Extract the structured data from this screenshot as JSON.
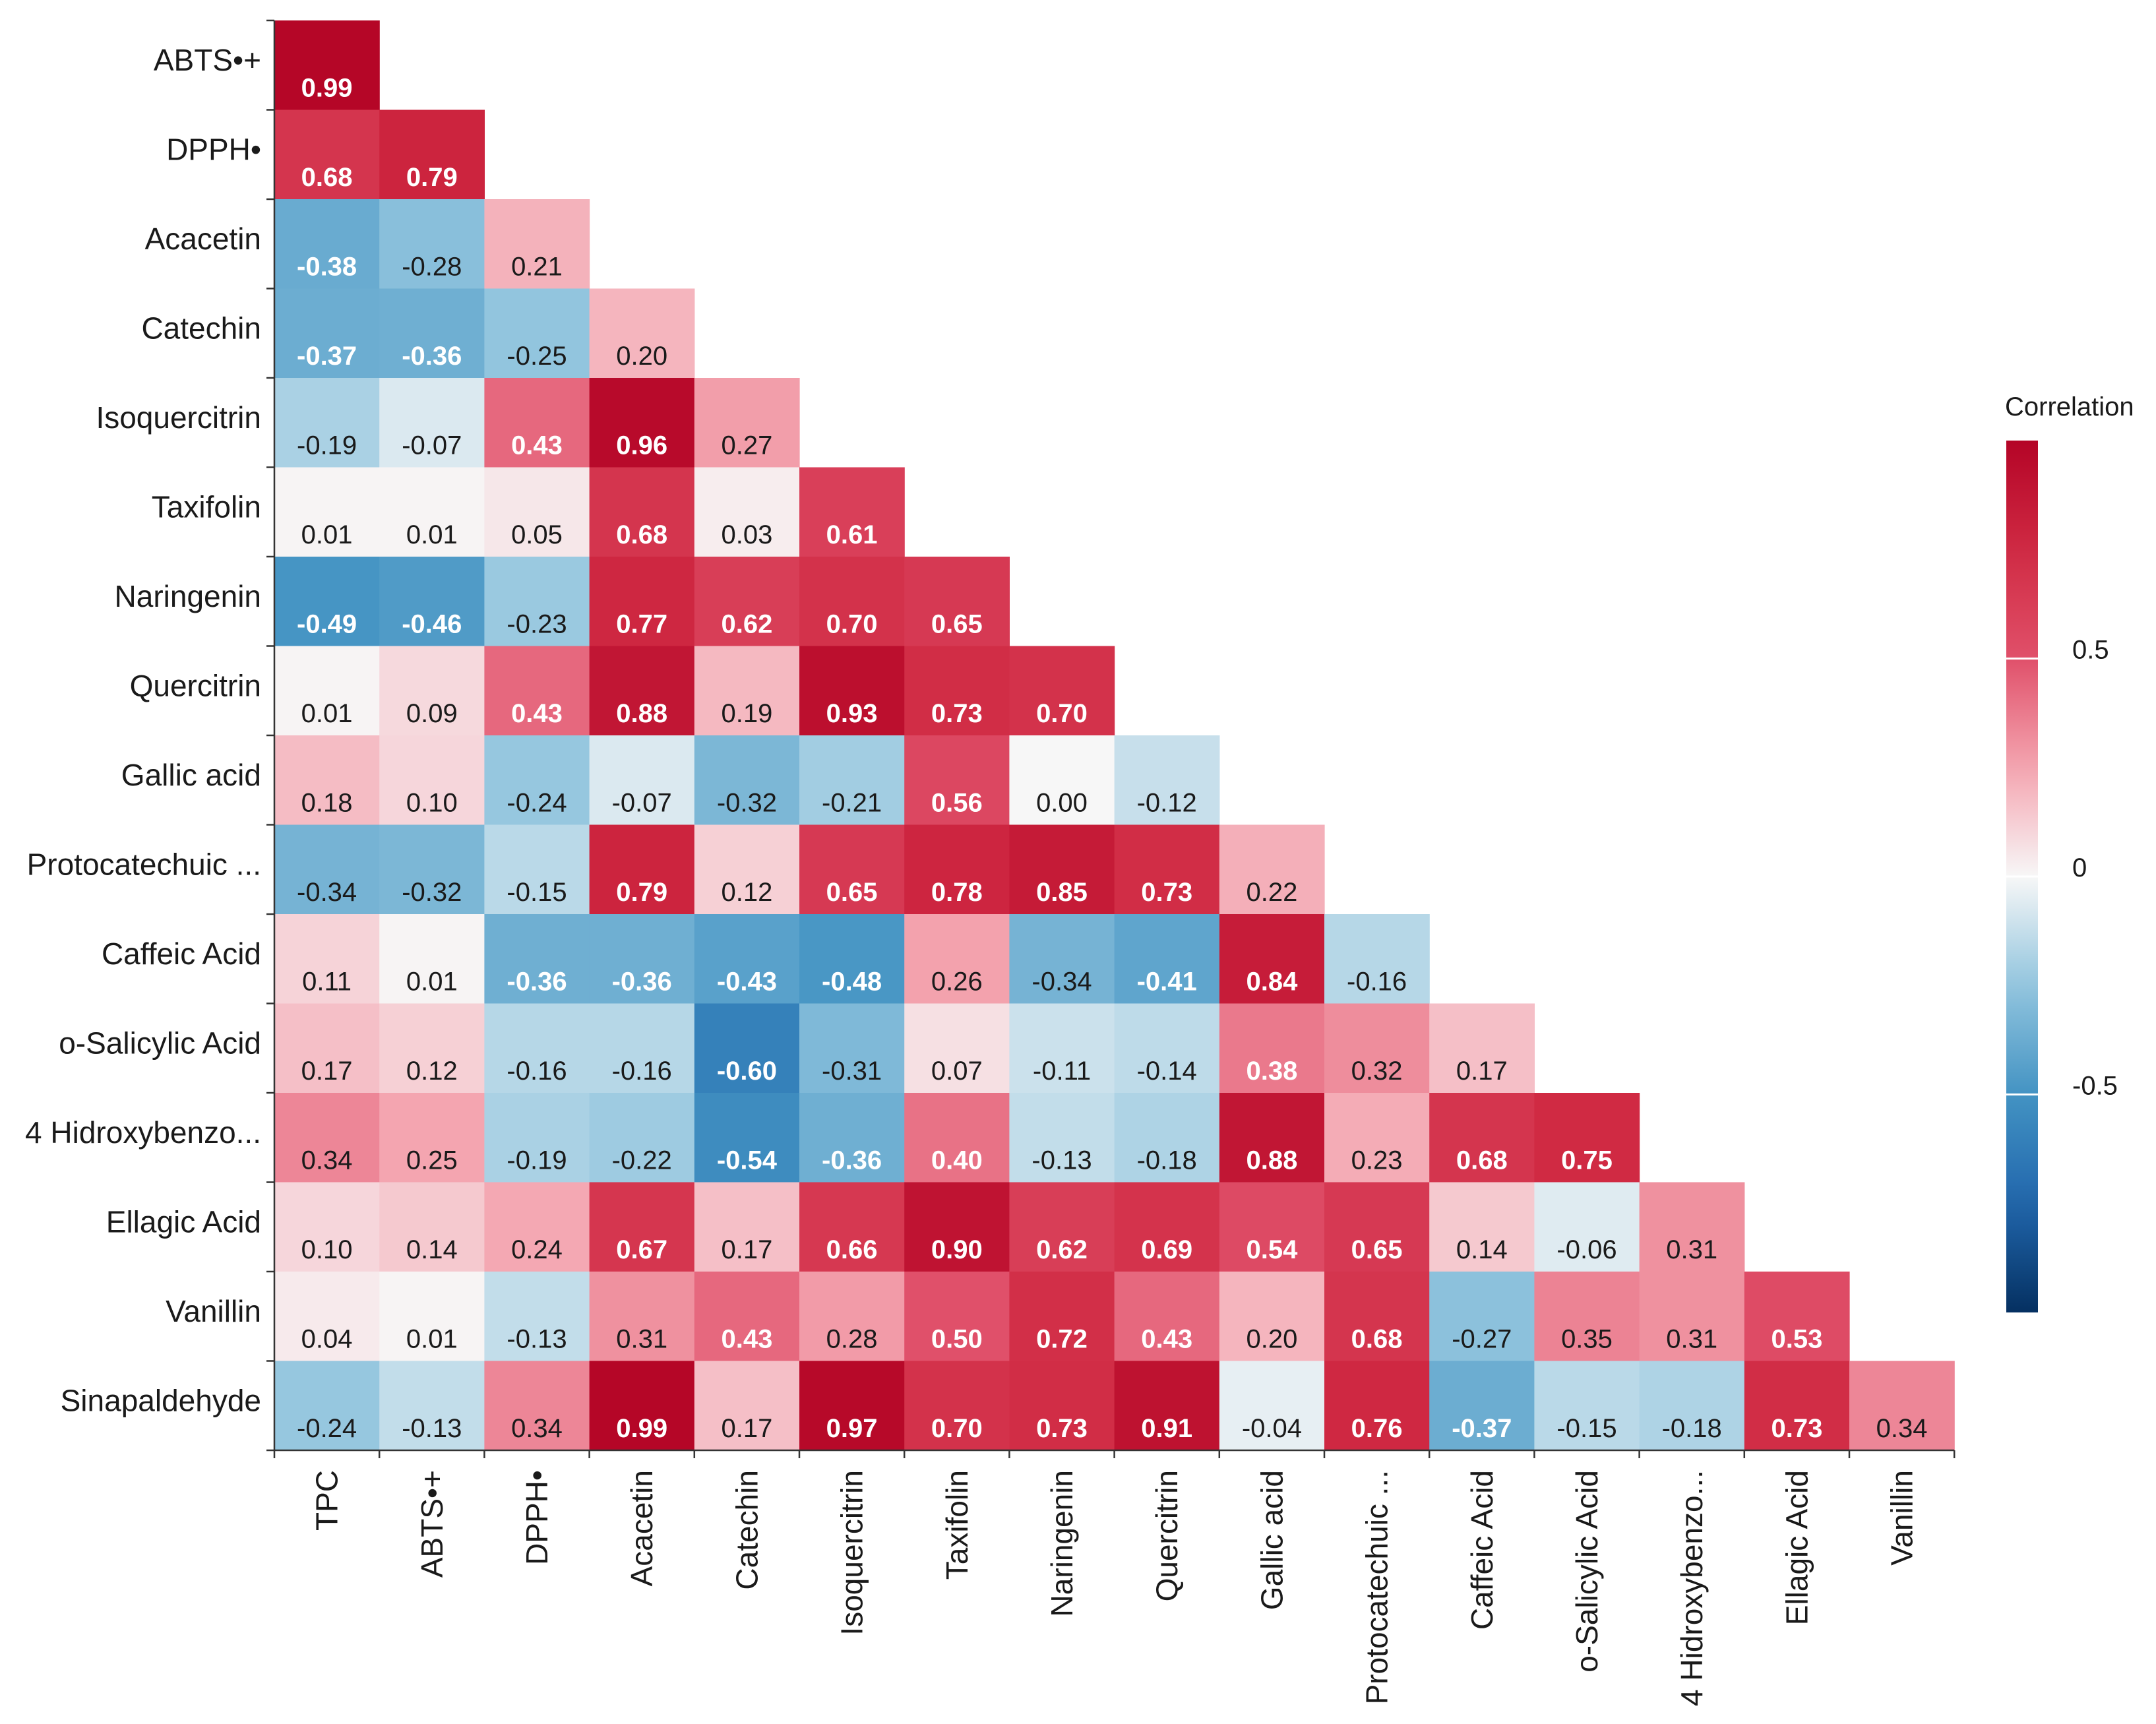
{
  "chart_data": {
    "type": "heatmap",
    "title": "",
    "row_labels": [
      "ABTS•+",
      "DPPH•",
      "Acacetin",
      "Catechin",
      "Isoquercitrin",
      "Taxifolin",
      "Naringenin",
      "Quercitrin",
      "Gallic acid",
      "Protocatechuic ...",
      "Caffeic Acid",
      "o-Salicylic Acid",
      "4 Hidroxybenzo...",
      "Ellagic Acid",
      "Vanillin",
      "Sinapaldehyde"
    ],
    "col_labels": [
      "TPC",
      "ABTS•+",
      "DPPH•",
      "Acacetin",
      "Catechin",
      "Isoquercitrin",
      "Taxifolin",
      "Naringenin",
      "Quercitrin",
      "Gallic acid",
      "Protocatechuic ...",
      "Caffeic Acid",
      "o-Salicylic Acid",
      "4 Hidroxybenzo...",
      "Ellagic Acid",
      "Vanillin"
    ],
    "values": [
      [
        0.99
      ],
      [
        0.68,
        0.79
      ],
      [
        -0.38,
        -0.28,
        0.21
      ],
      [
        -0.37,
        -0.36,
        -0.25,
        0.2
      ],
      [
        -0.19,
        -0.07,
        0.43,
        0.96,
        0.27
      ],
      [
        0.01,
        0.01,
        0.05,
        0.68,
        0.03,
        0.61
      ],
      [
        -0.49,
        -0.46,
        -0.23,
        0.77,
        0.62,
        0.7,
        0.65
      ],
      [
        0.01,
        0.09,
        0.43,
        0.88,
        0.19,
        0.93,
        0.73,
        0.7
      ],
      [
        0.18,
        0.1,
        -0.24,
        -0.07,
        -0.32,
        -0.21,
        0.56,
        0.0,
        -0.12
      ],
      [
        -0.34,
        -0.32,
        -0.15,
        0.79,
        0.12,
        0.65,
        0.78,
        0.85,
        0.73,
        0.22
      ],
      [
        0.11,
        0.01,
        -0.36,
        -0.36,
        -0.43,
        -0.48,
        0.26,
        -0.34,
        -0.41,
        0.84,
        -0.16
      ],
      [
        0.17,
        0.12,
        -0.16,
        -0.16,
        -0.6,
        -0.31,
        0.07,
        -0.11,
        -0.14,
        0.38,
        0.32,
        0.17
      ],
      [
        0.34,
        0.25,
        -0.19,
        -0.22,
        -0.54,
        -0.36,
        0.4,
        -0.13,
        -0.18,
        0.88,
        0.23,
        0.68,
        0.75
      ],
      [
        0.1,
        0.14,
        0.24,
        0.67,
        0.17,
        0.66,
        0.9,
        0.62,
        0.69,
        0.54,
        0.65,
        0.14,
        -0.06,
        0.31
      ],
      [
        0.04,
        0.01,
        -0.13,
        0.31,
        0.43,
        0.28,
        0.5,
        0.72,
        0.43,
        0.2,
        0.68,
        -0.27,
        0.35,
        0.31,
        0.53
      ],
      [
        -0.24,
        -0.13,
        0.34,
        0.99,
        0.17,
        0.97,
        0.7,
        0.73,
        0.91,
        -0.04,
        0.76,
        -0.37,
        -0.15,
        -0.18,
        0.73,
        0.34
      ]
    ],
    "value_range": [
      -1,
      1
    ],
    "legend": {
      "title": "Correlation",
      "ticks": [
        0.5,
        0,
        -0.5
      ],
      "tick_labels": [
        "0.5",
        "0",
        "-0.5"
      ],
      "position": "right"
    },
    "colors": {
      "negative": "#053061",
      "neutral": "#f7f7f7",
      "positive": "#b40426",
      "dark_text": "#1a1a1a",
      "light_text": "#ffffff"
    }
  }
}
